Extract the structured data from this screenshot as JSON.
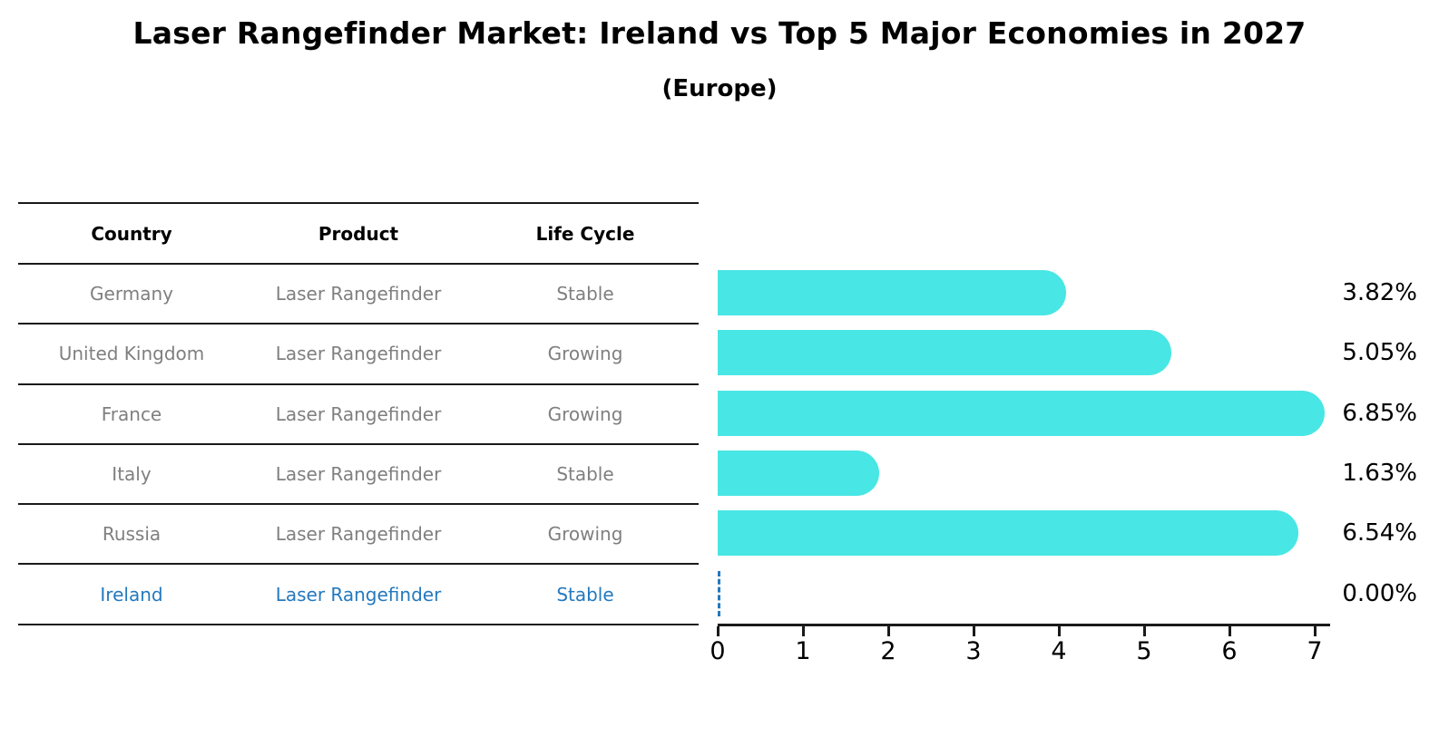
{
  "title": "Laser Rangefinder Market: Ireland vs Top 5 Major Economies in 2027",
  "subtitle": "(Europe)",
  "table": {
    "headers": [
      "Country",
      "Product",
      "Life Cycle"
    ],
    "rows": [
      {
        "country": "Germany",
        "product": "Laser Rangefinder",
        "life_cycle": "Stable",
        "highlight": false
      },
      {
        "country": "United Kingdom",
        "product": "Laser Rangefinder",
        "life_cycle": "Growing",
        "highlight": false
      },
      {
        "country": "France",
        "product": "Laser Rangefinder",
        "life_cycle": "Growing",
        "highlight": false
      },
      {
        "country": "Italy",
        "product": "Laser Rangefinder",
        "life_cycle": "Stable",
        "highlight": false
      },
      {
        "country": "Russia",
        "product": "Laser Rangefinder",
        "life_cycle": "Growing",
        "highlight": true
      },
      {
        "country": "Ireland",
        "product": "Laser Rangefinder",
        "life_cycle": "Stable",
        "highlight": true
      }
    ]
  },
  "chart_data": {
    "type": "bar",
    "orientation": "horizontal",
    "title": "Laser Rangefinder Market: Ireland vs Top 5 Major Economies in 2027",
    "subtitle": "(Europe)",
    "categories": [
      "Germany",
      "United Kingdom",
      "France",
      "Italy",
      "Russia",
      "Ireland"
    ],
    "values": [
      3.82,
      5.05,
      6.85,
      1.63,
      6.54,
      0.0
    ],
    "value_labels": [
      "3.82%",
      "5.05%",
      "6.85%",
      "1.63%",
      "6.54%",
      "0.00%"
    ],
    "xlabel": "",
    "ylabel": "",
    "xlim": [
      0,
      7.18
    ],
    "x_ticks": [
      0,
      1,
      2,
      3,
      4,
      5,
      6,
      7
    ],
    "grid": false,
    "legend": "none",
    "bar_color": "#48e6e4",
    "highlight_color": "#2479be",
    "highlight_index": 5,
    "zero_value_marker": "dashed-line"
  }
}
